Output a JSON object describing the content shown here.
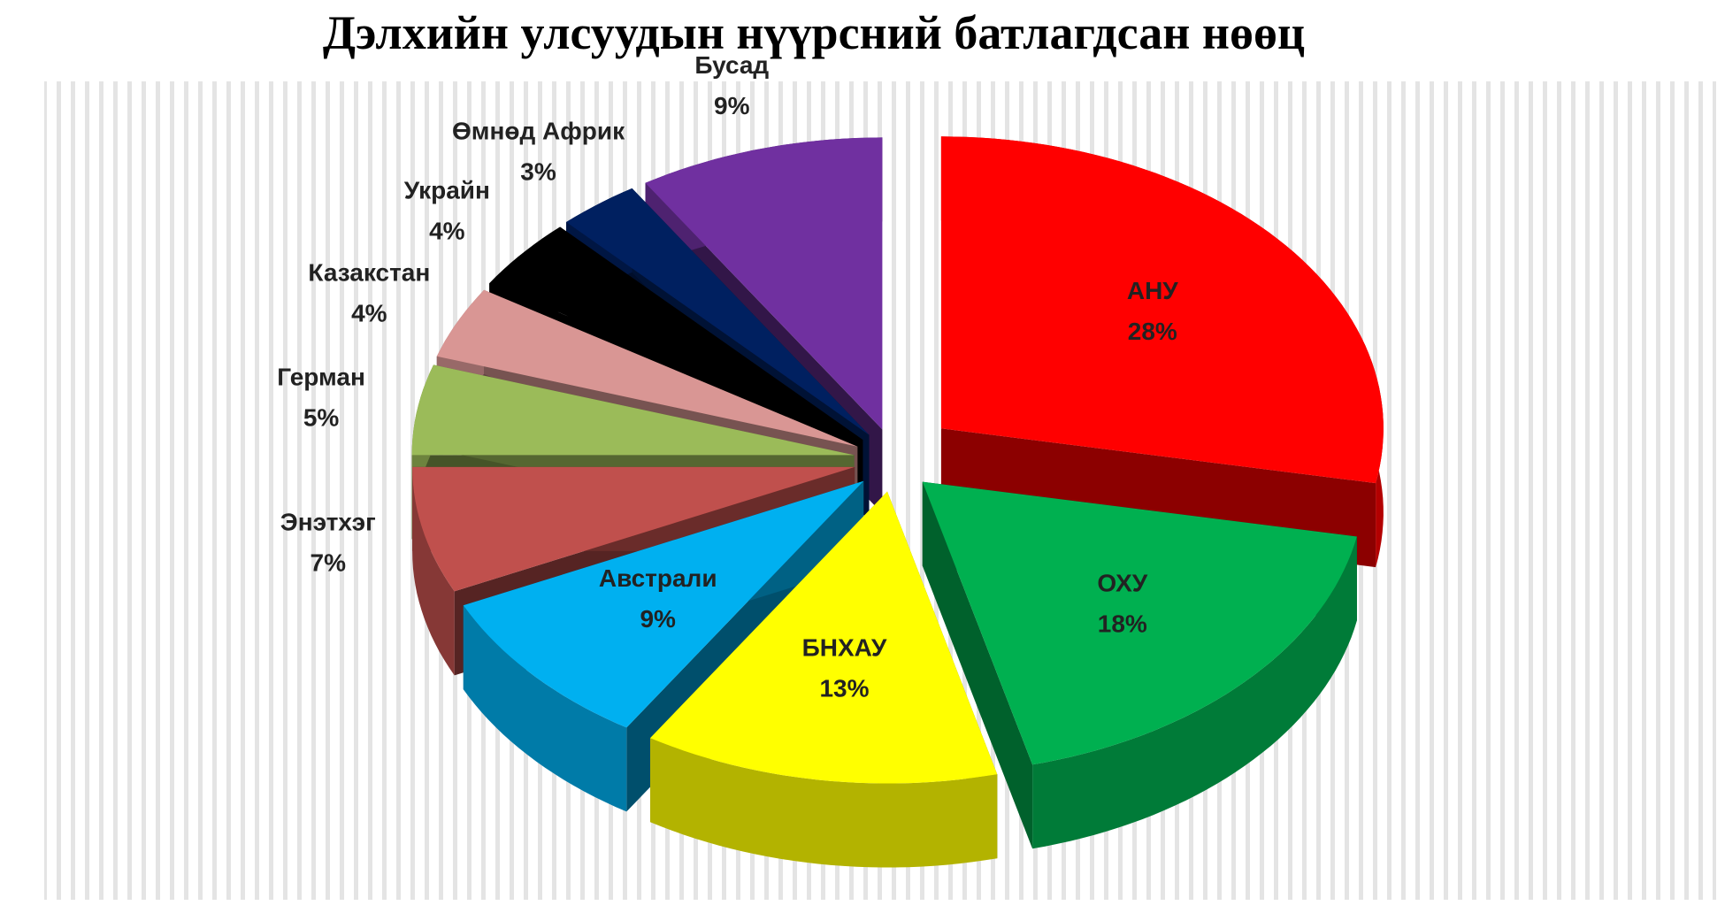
{
  "chart_data": {
    "type": "pie",
    "title": "Дэлхийн улсуудын нүүрсний батлагдсан нөөц",
    "categories": [
      "АНУ",
      "ОХУ",
      "БНХАУ",
      "Австрали",
      "Энэтхэг",
      "Герман",
      "Казакстан",
      "Украйн",
      "Өмнөд Африк",
      "Бусад"
    ],
    "values": [
      28,
      18,
      13,
      9,
      7,
      5,
      4,
      4,
      3,
      9
    ],
    "value_labels": [
      "28%",
      "18%",
      "13%",
      "9%",
      "7%",
      "5%",
      "4%",
      "4%",
      "3%",
      "9%"
    ],
    "colors": [
      "#ff0000",
      "#00b050",
      "#ffff00",
      "#00b0f0",
      "#c0504d",
      "#9bbb59",
      "#d99694",
      "#000000",
      "#002060",
      "#7030a0"
    ]
  }
}
